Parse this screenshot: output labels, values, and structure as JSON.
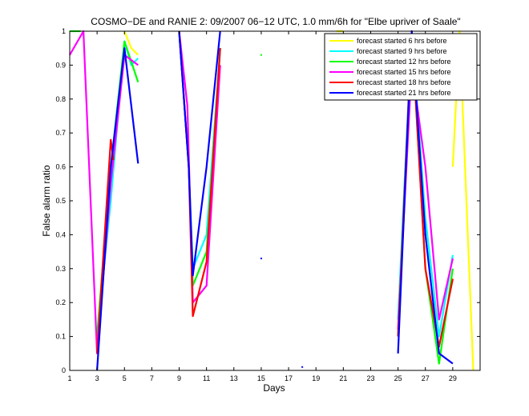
{
  "chart_data": {
    "type": "line",
    "title": "COSMO−DE and RANIE 2: 09/2007 06−12 UTC, 1.0 mm/6h for \"Elbe upriver of Saale\"",
    "xlabel": "Days",
    "ylabel": "False alarm ratio",
    "xlim": [
      1,
      31
    ],
    "ylim": [
      0,
      1
    ],
    "x_ticks": [
      1,
      3,
      5,
      7,
      9,
      11,
      13,
      15,
      17,
      19,
      21,
      23,
      25,
      27,
      29
    ],
    "y_ticks": [
      0,
      0.1,
      0.2,
      0.3,
      0.4,
      0.5,
      0.6,
      0.7,
      0.8,
      0.9,
      1
    ],
    "grid": false,
    "legend": "top-right",
    "series": [
      {
        "name": "forecast started 6 hrs before",
        "color": "#ffff00",
        "segments": [
          [
            [
              5.0,
              1.0
            ],
            [
              5.5,
              0.95
            ],
            [
              6.0,
              0.93
            ]
          ],
          [
            [
              20.5,
              1.0
            ],
            [
              21.0,
              1.0
            ]
          ],
          [
            [
              29.0,
              0.6
            ],
            [
              29.5,
              1.0
            ],
            [
              30.5,
              0.0
            ]
          ]
        ]
      },
      {
        "name": "forecast started 9 hrs before",
        "color": "#00ffff",
        "segments": [
          [
            [
              3.0,
              0.1
            ],
            [
              4.0,
              0.5
            ],
            [
              5.0,
              0.97
            ],
            [
              5.5,
              0.9
            ],
            [
              6.0,
              0.92
            ]
          ],
          [
            [
              9.0,
              1.0
            ],
            [
              9.7,
              0.6
            ],
            [
              10.0,
              0.3
            ],
            [
              11.0,
              0.4
            ],
            [
              12.0,
              0.95
            ]
          ],
          [
            [
              25.0,
              0.15
            ],
            [
              26.0,
              1.0
            ],
            [
              27.0,
              0.45
            ],
            [
              28.0,
              0.1
            ],
            [
              29.0,
              0.34
            ]
          ]
        ]
      },
      {
        "name": "forecast started 12 hrs before",
        "color": "#00ff00",
        "segments": [
          [
            [
              1.0,
              1.0
            ],
            [
              1.8,
              1.0
            ]
          ],
          [
            [
              3.0,
              0.1
            ],
            [
              4.0,
              0.6
            ],
            [
              5.0,
              0.97
            ],
            [
              6.0,
              0.85
            ]
          ],
          [
            [
              9.0,
              1.0
            ],
            [
              9.7,
              0.6
            ],
            [
              10.0,
              0.25
            ],
            [
              11.0,
              0.35
            ],
            [
              12.0,
              0.95
            ]
          ],
          [
            [
              15.0,
              0.93
            ]
          ],
          [
            [
              25.0,
              0.1
            ],
            [
              26.0,
              1.0
            ],
            [
              27.0,
              0.3
            ],
            [
              28.0,
              0.02
            ],
            [
              29.0,
              0.3
            ]
          ]
        ]
      },
      {
        "name": "forecast started 15 hrs before",
        "color": "#ff00ff",
        "segments": [
          [
            [
              1.0,
              0.93
            ],
            [
              2.0,
              1.0
            ],
            [
              3.0,
              0.05
            ],
            [
              4.0,
              0.55
            ],
            [
              5.0,
              0.93
            ],
            [
              6.0,
              0.9
            ]
          ],
          [
            [
              9.0,
              1.0
            ],
            [
              9.6,
              0.78
            ],
            [
              10.0,
              0.2
            ],
            [
              11.0,
              0.25
            ],
            [
              12.0,
              0.9
            ]
          ],
          [
            [
              25.0,
              0.12
            ],
            [
              26.0,
              0.9
            ],
            [
              27.0,
              0.6
            ],
            [
              28.0,
              0.15
            ],
            [
              29.0,
              0.33
            ]
          ]
        ]
      },
      {
        "name": "forecast started 18 hrs before",
        "color": "#ff0000",
        "segments": [
          [
            [
              3.0,
              0.05
            ],
            [
              4.0,
              0.68
            ],
            [
              4.2,
              0.62
            ]
          ],
          [
            [
              9.0,
              1.0
            ],
            [
              9.7,
              0.6
            ],
            [
              10.0,
              0.16
            ],
            [
              11.0,
              0.32
            ],
            [
              12.0,
              0.95
            ]
          ],
          [
            [
              25.0,
              0.1
            ],
            [
              26.0,
              1.0
            ],
            [
              27.0,
              0.3
            ],
            [
              28.0,
              0.07
            ],
            [
              29.0,
              0.27
            ]
          ]
        ]
      },
      {
        "name": "forecast started 21 hrs before",
        "color": "#0000ff",
        "segments": [
          [
            [
              3.0,
              0.0
            ],
            [
              4.0,
              0.6
            ],
            [
              5.0,
              0.95
            ],
            [
              6.0,
              0.61
            ]
          ],
          [
            [
              9.0,
              1.0
            ],
            [
              9.7,
              0.6
            ],
            [
              10.0,
              0.28
            ],
            [
              11.0,
              0.6
            ],
            [
              12.0,
              1.0
            ]
          ],
          [
            [
              15.0,
              0.33
            ]
          ],
          [
            [
              18.0,
              0.01
            ]
          ],
          [
            [
              25.0,
              0.05
            ],
            [
              26.0,
              1.0
            ],
            [
              27.0,
              0.4
            ],
            [
              28.0,
              0.05
            ],
            [
              29.0,
              0.02
            ]
          ]
        ]
      }
    ]
  }
}
